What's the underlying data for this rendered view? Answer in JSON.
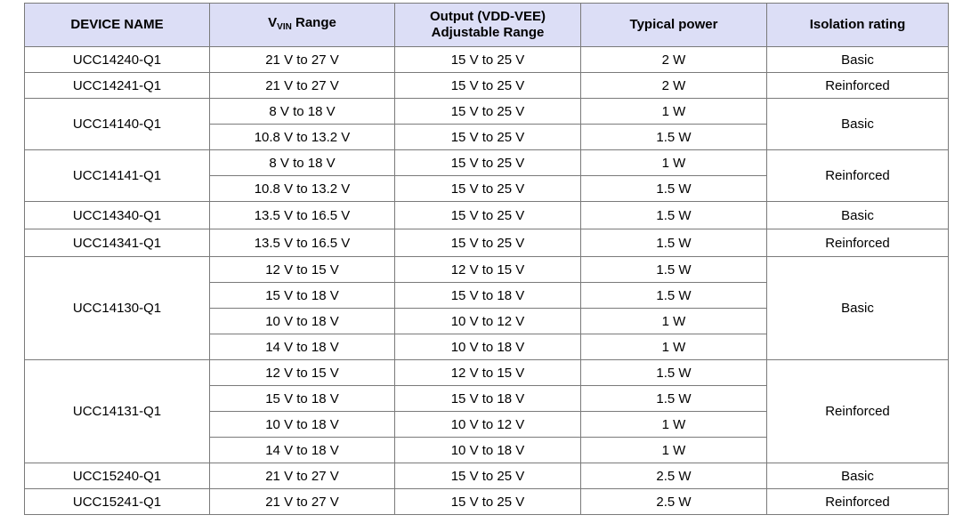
{
  "table": {
    "headers": {
      "device": "DEVICE NAME",
      "vin_main": "V",
      "vin_sub": "VIN",
      "vin_rest": " Range",
      "output_line1": "Output (VDD-VEE)",
      "output_line2": "Adjustable Range",
      "power": "Typical power",
      "isolation": "Isolation rating"
    },
    "devices": [
      {
        "name": "UCC14240-Q1",
        "isolation": "Basic",
        "configs": [
          {
            "vin": "21 V to 27 V",
            "output": "15 V to 25 V",
            "power": "2 W"
          }
        ]
      },
      {
        "name": "UCC14241-Q1",
        "isolation": "Reinforced",
        "configs": [
          {
            "vin": "21 V to 27 V",
            "output": "15 V to 25 V",
            "power": "2 W"
          }
        ]
      },
      {
        "name": "UCC14140-Q1",
        "isolation": "Basic",
        "configs": [
          {
            "vin": "8 V to 18 V",
            "output": "15 V to 25 V",
            "power": "1 W"
          },
          {
            "vin": "10.8 V to 13.2 V",
            "output": "15 V to 25 V",
            "power": "1.5 W"
          }
        ]
      },
      {
        "name": "UCC14141-Q1",
        "isolation": "Reinforced",
        "configs": [
          {
            "vin": "8 V to 18 V",
            "output": "15 V to 25 V",
            "power": "1 W"
          },
          {
            "vin": "10.8 V to 13.2 V",
            "output": "15 V to 25 V",
            "power": "1.5 W"
          }
        ]
      },
      {
        "name": "UCC14340-Q1",
        "isolation": "Basic",
        "configs": [
          {
            "vin": "13.5 V to 16.5 V",
            "output": "15 V to 25 V",
            "power": "1.5 W"
          }
        ]
      },
      {
        "name": "UCC14341-Q1",
        "isolation": "Reinforced",
        "configs": [
          {
            "vin": "13.5 V to 16.5 V",
            "output": "15 V to 25 V",
            "power": "1.5 W"
          }
        ]
      },
      {
        "name": "UCC14130-Q1",
        "isolation": "Basic",
        "configs": [
          {
            "vin": "12 V to 15 V",
            "output": "12 V to 15 V",
            "power": "1.5 W"
          },
          {
            "vin": "15 V to 18 V",
            "output": "15 V to 18 V",
            "power": "1.5 W"
          },
          {
            "vin": "10 V to 18 V",
            "output": "10 V to 12 V",
            "power": "1 W"
          },
          {
            "vin": "14 V to 18 V",
            "output": "10 V to 18 V",
            "power": "1 W"
          }
        ]
      },
      {
        "name": "UCC14131-Q1",
        "isolation": "Reinforced",
        "configs": [
          {
            "vin": "12 V to 15 V",
            "output": "12 V to 15 V",
            "power": "1.5 W"
          },
          {
            "vin": "15 V to 18 V",
            "output": "15 V to 18 V",
            "power": "1.5 W"
          },
          {
            "vin": "10 V to 18 V",
            "output": "10 V to 12 V",
            "power": "1 W"
          },
          {
            "vin": "14 V to 18 V",
            "output": "10 V to 18 V",
            "power": "1 W"
          }
        ]
      },
      {
        "name": "UCC15240-Q1",
        "isolation": "Basic",
        "configs": [
          {
            "vin": "21 V to 27 V",
            "output": "15 V to 25 V",
            "power": "2.5 W"
          }
        ]
      },
      {
        "name": "UCC15241-Q1",
        "isolation": "Reinforced",
        "configs": [
          {
            "vin": "21 V to 27 V",
            "output": "15 V to 25 V",
            "power": "2.5 W"
          }
        ]
      }
    ]
  }
}
